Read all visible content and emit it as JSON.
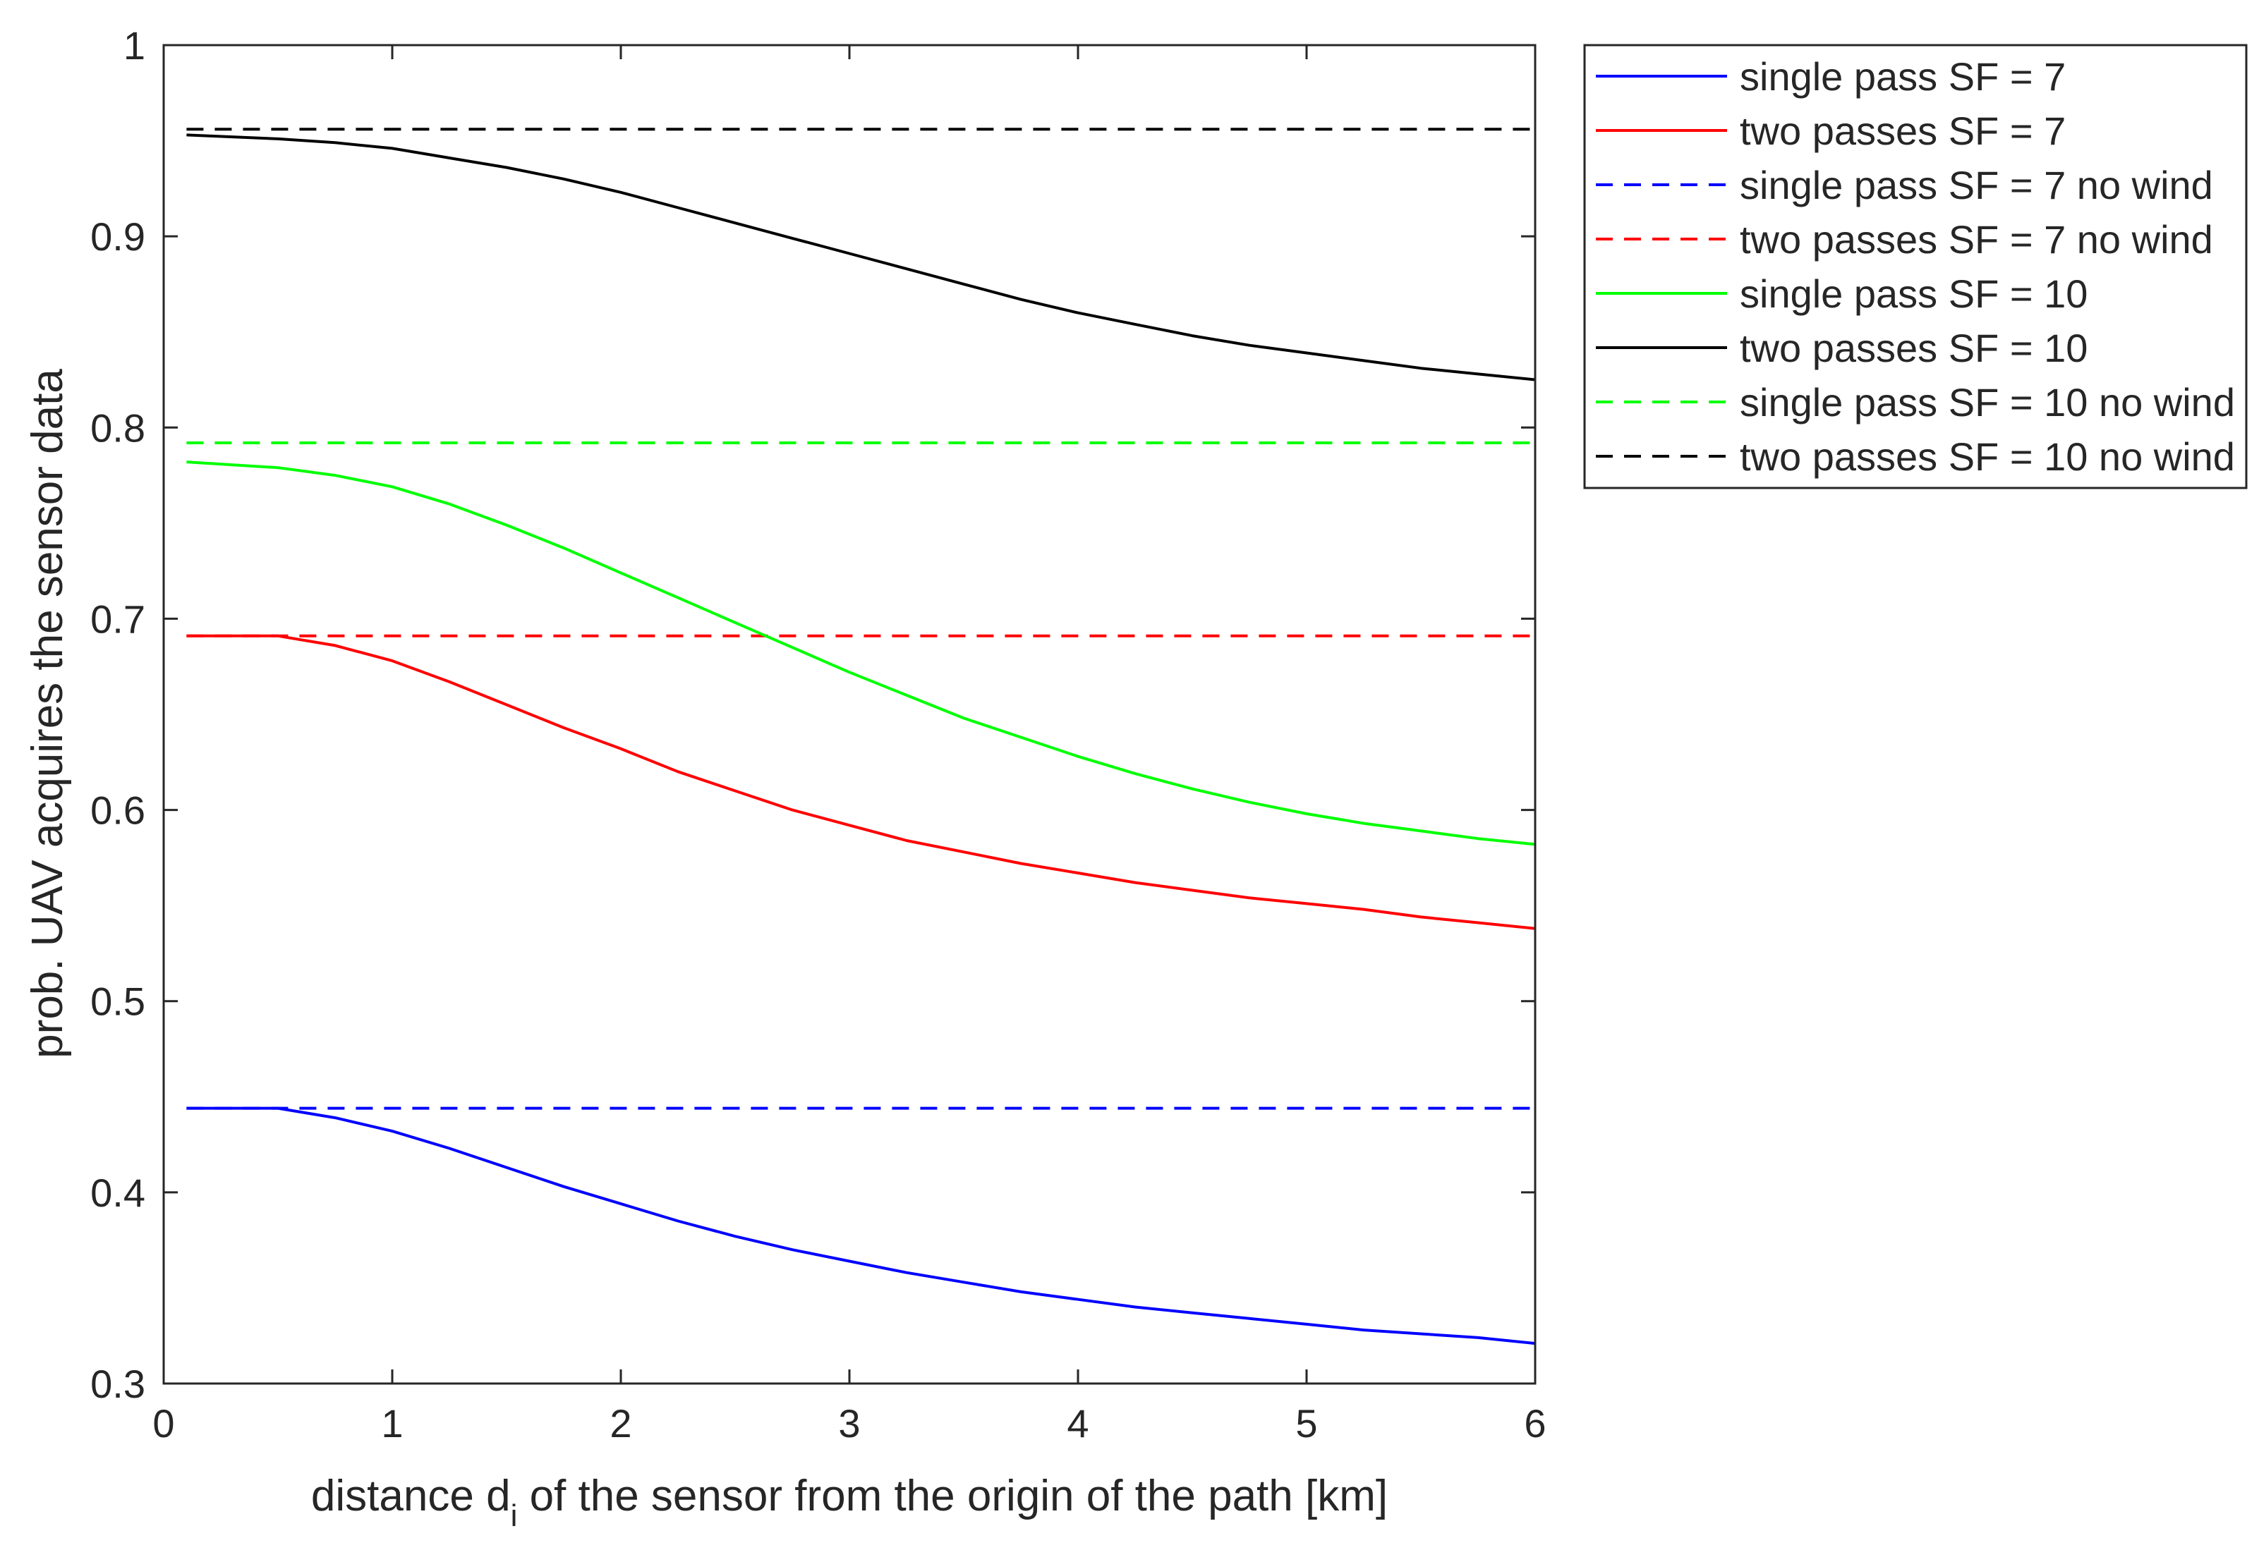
{
  "chart_data": {
    "type": "line",
    "title": "",
    "xlabel": {
      "pre": "distance d",
      "sub": "i",
      "post": " of the sensor from the origin of the path [km]"
    },
    "ylabel": "prob. UAV acquires the sensor data",
    "xlim": [
      0,
      6
    ],
    "ylim": [
      0.3,
      1
    ],
    "xticks": [
      0,
      1,
      2,
      3,
      4,
      5,
      6
    ],
    "xtick_labels": [
      "0",
      "1",
      "2",
      "3",
      "4",
      "5",
      "6"
    ],
    "yticks": [
      0.3,
      0.4,
      0.5,
      0.6,
      0.7,
      0.8,
      0.9,
      1
    ],
    "ytick_labels": [
      "0.3",
      "0.4",
      "0.5",
      "0.6",
      "0.7",
      "0.8",
      "0.9",
      "1"
    ],
    "grid": false,
    "legend_position": "outside-top-right",
    "x": [
      0.1,
      0.5,
      0.75,
      1.0,
      1.25,
      1.5,
      1.75,
      2.0,
      2.25,
      2.5,
      2.75,
      3.0,
      3.25,
      3.5,
      3.75,
      4.0,
      4.25,
      4.5,
      4.75,
      5.0,
      5.25,
      5.5,
      5.75,
      6.0
    ],
    "series": [
      {
        "name": "single pass SF = 7",
        "color": "#0000ff",
        "dash": "solid",
        "values": [
          0.444,
          0.444,
          0.439,
          0.432,
          0.423,
          0.413,
          0.403,
          0.394,
          0.385,
          0.377,
          0.37,
          0.364,
          0.358,
          0.353,
          0.348,
          0.344,
          0.34,
          0.337,
          0.334,
          0.331,
          0.328,
          0.326,
          0.324,
          0.321
        ]
      },
      {
        "name": "two passes SF = 7",
        "color": "#ff0000",
        "dash": "solid",
        "values": [
          0.691,
          0.691,
          0.686,
          0.678,
          0.667,
          0.655,
          0.643,
          0.632,
          0.62,
          0.61,
          0.6,
          0.592,
          0.584,
          0.578,
          0.572,
          0.567,
          0.562,
          0.558,
          0.554,
          0.551,
          0.548,
          0.544,
          0.541,
          0.538
        ]
      },
      {
        "name": "single pass SF = 7 no wind",
        "color": "#0000ff",
        "dash": "dashed",
        "values": [
          0.444,
          0.444,
          0.444,
          0.444,
          0.444,
          0.444,
          0.444,
          0.444,
          0.444,
          0.444,
          0.444,
          0.444,
          0.444,
          0.444,
          0.444,
          0.444,
          0.444,
          0.444,
          0.444,
          0.444,
          0.444,
          0.444,
          0.444,
          0.444
        ]
      },
      {
        "name": "two passes SF = 7 no wind",
        "color": "#ff0000",
        "dash": "dashed",
        "values": [
          0.691,
          0.691,
          0.691,
          0.691,
          0.691,
          0.691,
          0.691,
          0.691,
          0.691,
          0.691,
          0.691,
          0.691,
          0.691,
          0.691,
          0.691,
          0.691,
          0.691,
          0.691,
          0.691,
          0.691,
          0.691,
          0.691,
          0.691,
          0.691
        ]
      },
      {
        "name": "single pass SF = 10",
        "color": "#00ff00",
        "dash": "solid",
        "values": [
          0.782,
          0.779,
          0.775,
          0.769,
          0.76,
          0.749,
          0.737,
          0.724,
          0.711,
          0.698,
          0.685,
          0.672,
          0.66,
          0.648,
          0.638,
          0.628,
          0.619,
          0.611,
          0.604,
          0.598,
          0.593,
          0.589,
          0.585,
          0.582
        ]
      },
      {
        "name": "two passes SF = 10",
        "color": "#000000",
        "dash": "solid",
        "values": [
          0.953,
          0.951,
          0.949,
          0.946,
          0.941,
          0.936,
          0.93,
          0.923,
          0.915,
          0.907,
          0.899,
          0.891,
          0.883,
          0.875,
          0.867,
          0.86,
          0.854,
          0.848,
          0.843,
          0.839,
          0.835,
          0.831,
          0.828,
          0.825
        ]
      },
      {
        "name": "single pass SF = 10 no wind",
        "color": "#00ff00",
        "dash": "dashed",
        "values": [
          0.792,
          0.792,
          0.792,
          0.792,
          0.792,
          0.792,
          0.792,
          0.792,
          0.792,
          0.792,
          0.792,
          0.792,
          0.792,
          0.792,
          0.792,
          0.792,
          0.792,
          0.792,
          0.792,
          0.792,
          0.792,
          0.792,
          0.792,
          0.792
        ]
      },
      {
        "name": "two passes SF = 10 no wind",
        "color": "#000000",
        "dash": "dashed",
        "values": [
          0.956,
          0.956,
          0.956,
          0.956,
          0.956,
          0.956,
          0.956,
          0.956,
          0.956,
          0.956,
          0.956,
          0.956,
          0.956,
          0.956,
          0.956,
          0.956,
          0.956,
          0.956,
          0.956,
          0.956,
          0.956,
          0.956,
          0.956,
          0.956
        ]
      }
    ]
  }
}
